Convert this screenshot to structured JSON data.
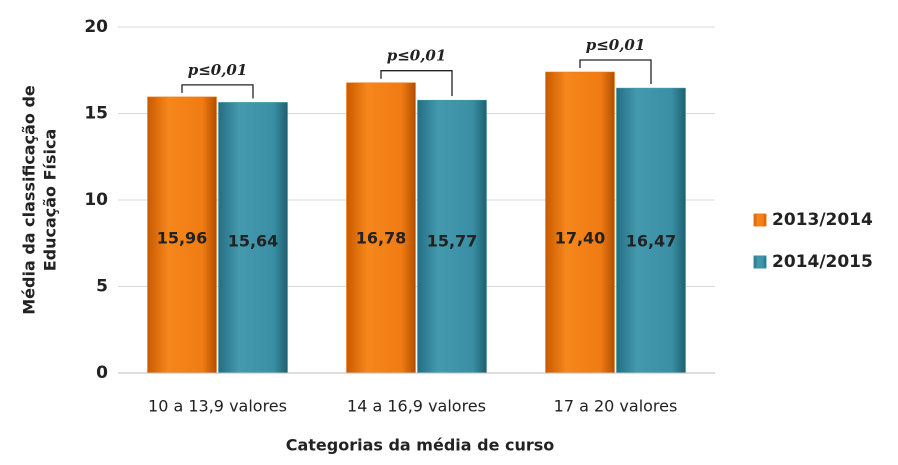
{
  "chart_data": {
    "type": "bar",
    "ylabel": [
      "Média da classificação de",
      "Educação Física"
    ],
    "xlabel": "Categorias da média de curso",
    "categories": [
      "10 a 13,9 valores",
      "14 a 16,9 valores",
      "17 a 20 valores"
    ],
    "series": [
      {
        "name": "2013/2014",
        "color": "#f07b12",
        "values": [
          15.96,
          16.78,
          17.4
        ],
        "value_labels": [
          "15,96",
          "16,78",
          "17,40"
        ]
      },
      {
        "name": "2014/2015",
        "color": "#3a8fa5",
        "values": [
          15.64,
          15.77,
          16.47
        ],
        "value_labels": [
          "15,64",
          "15,77",
          "16,47"
        ]
      }
    ],
    "annotations": [
      "p≤0,01",
      "p≤0,01",
      "p≤0,01"
    ],
    "ylim": [
      0,
      20
    ],
    "yticks": [
      0,
      5,
      10,
      15,
      20
    ],
    "grid": true,
    "legend": "right"
  }
}
